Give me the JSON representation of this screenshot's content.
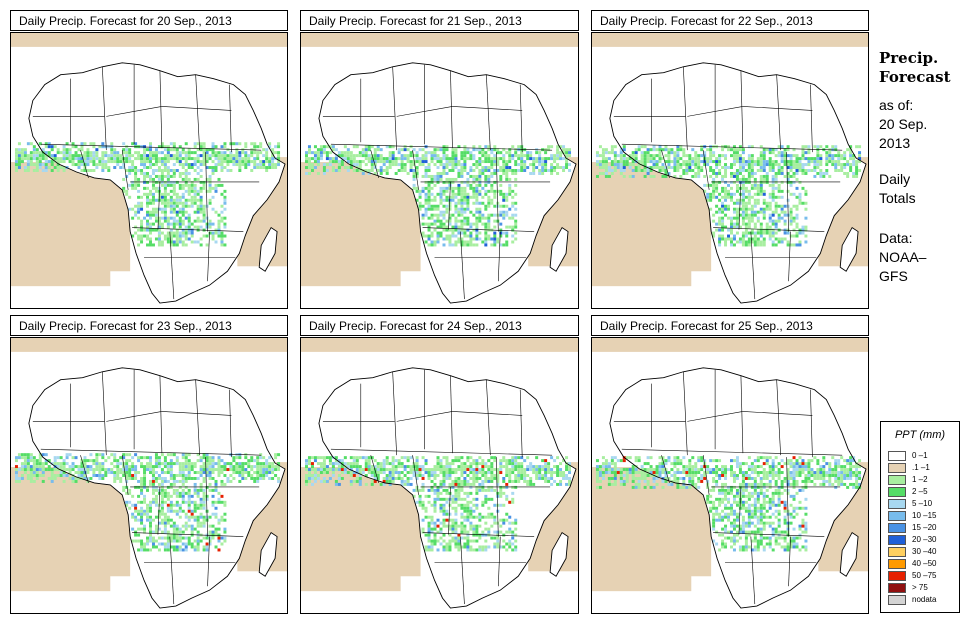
{
  "panels": [
    {
      "title": "Daily Precip. Forecast for  20 Sep., 2013"
    },
    {
      "title": "Daily Precip. Forecast for  21 Sep., 2013"
    },
    {
      "title": "Daily Precip. Forecast for  22 Sep., 2013"
    },
    {
      "title": "Daily Precip. Forecast for  23 Sep., 2013"
    },
    {
      "title": "Daily Precip. Forecast for  24 Sep., 2013"
    },
    {
      "title": "Daily Precip. Forecast for  25 Sep., 2013"
    }
  ],
  "sidebar": {
    "heading_line1": "Precip.",
    "heading_line2": "Forecast",
    "asof_line1": "as of:",
    "asof_line2": "20 Sep.",
    "asof_line3": "2013",
    "totals_line1": "Daily",
    "totals_line2": "Totals",
    "data_line1": "Data:",
    "data_line2": "NOAA–",
    "data_line3": "GFS"
  },
  "legend": {
    "title": "PPT (mm)",
    "items": [
      {
        "label": "0 –1",
        "color": "#ffffff"
      },
      {
        "label": ".1 –1",
        "color": "#e6d2b4"
      },
      {
        "label": "1 –2",
        "color": "#a8eea0"
      },
      {
        "label": "2 –5",
        "color": "#55dd66"
      },
      {
        "label": "5 –10",
        "color": "#a8d8f0"
      },
      {
        "label": "10 –15",
        "color": "#78bcec"
      },
      {
        "label": "15 –20",
        "color": "#4a92e4"
      },
      {
        "label": "20 –30",
        "color": "#2060d8"
      },
      {
        "label": "30 –40",
        "color": "#ffd060"
      },
      {
        "label": "40 –50",
        "color": "#ff9a00"
      },
      {
        "label": "50 –75",
        "color": "#e62000"
      },
      {
        "label": "> 75",
        "color": "#901010"
      },
      {
        "label": "nodata",
        "color": "#d4d4d4"
      }
    ]
  }
}
